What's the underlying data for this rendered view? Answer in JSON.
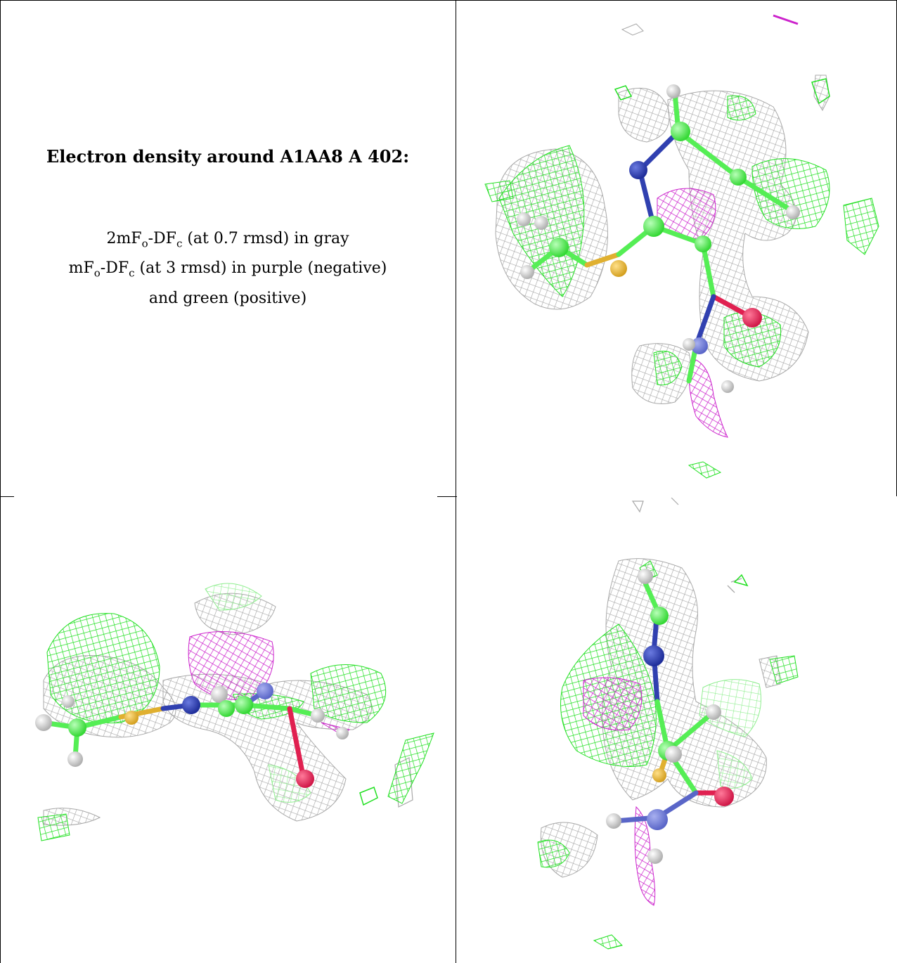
{
  "caption": {
    "title": "Electron density around A1AA8 A 402:",
    "line1_prefix": "2mF",
    "line1_sub_o": "o",
    "line1_mid": "-DF",
    "line1_sub_c": "c",
    "line1_rest": " (at 0.7 rmsd) in gray",
    "line2_prefix": "mF",
    "line2_sub_o": "o",
    "line2_mid": "-DF",
    "line2_sub_c": "c",
    "line2_rest": " (at 3 rmsd) in purple (negative)",
    "line3": "and green (positive)"
  },
  "colors": {
    "mesh_gray": "#a8a8a8",
    "mesh_purple": "#cc22cc",
    "mesh_green": "#22e022",
    "carbon": "#55ee55",
    "nitrogen": "#3040b0",
    "sulfur": "#e0b030",
    "oxygen": "#e02050",
    "hydrogen": "#dddddd"
  },
  "panels": [
    {
      "name": "view-1",
      "view": "top-right"
    },
    {
      "name": "view-2",
      "view": "bottom-left"
    },
    {
      "name": "view-3",
      "view": "bottom-right"
    }
  ]
}
